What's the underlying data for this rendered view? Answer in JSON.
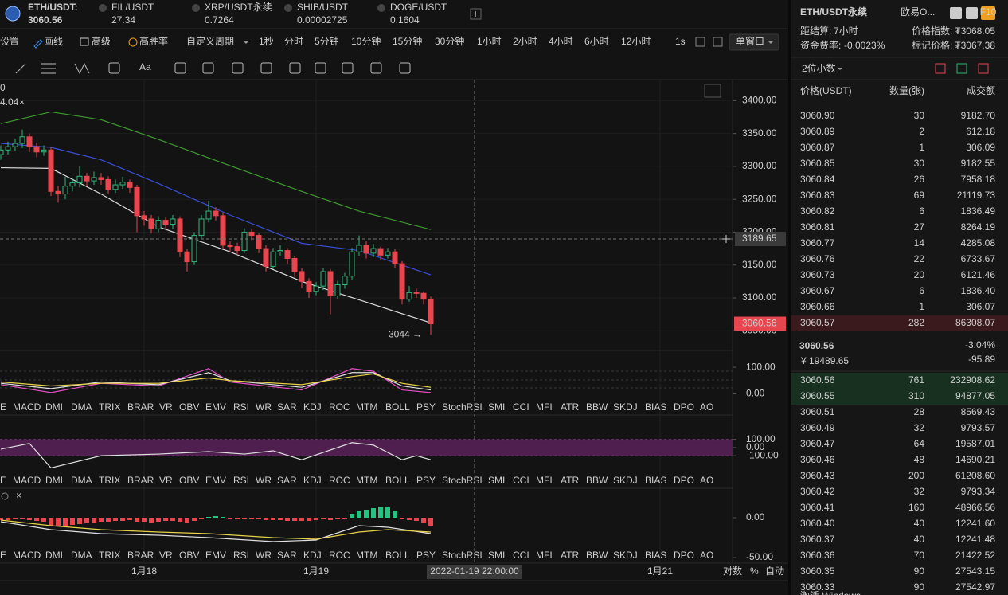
{
  "tickers": [
    {
      "symbol": "ETH/USDT:",
      "price": "3060.56",
      "color": "#e8e8e8"
    },
    {
      "symbol": "FIL/USDT",
      "price": "27.34",
      "color": "#e0484d"
    },
    {
      "symbol": "XRP/USDT永续",
      "price": "0.7264",
      "color": "#2db56e"
    },
    {
      "symbol": "SHIB/USDT",
      "price": "0.00002725",
      "color": "#e0484d"
    },
    {
      "symbol": "DOGE/USDT",
      "price": "0.1604",
      "color": "#e0484d"
    }
  ],
  "toolbar": {
    "items": [
      "设置",
      "画线",
      "高级",
      "高胜率",
      "自定义周期"
    ],
    "periods": [
      "1秒",
      "分时",
      "5分钟",
      "10分钟",
      "15分钟",
      "30分钟",
      "1小时",
      "2小时",
      "4小时",
      "6小时",
      "12小时"
    ],
    "active_period": "1小时",
    "interval": "1s",
    "window": "单窗口",
    "font_tool": "Aa"
  },
  "legend_fragments": [
    "0",
    "4.04"
  ],
  "axis_options": [
    "对数",
    "%",
    "自动"
  ],
  "indicator_tabs": [
    "E",
    "MACD",
    "DMI",
    "DMA",
    "TRIX",
    "BRAR",
    "VR",
    "OBV",
    "EMV",
    "RSI",
    "WR",
    "SAR",
    "KDJ",
    "ROC",
    "MTM",
    "BOLL",
    "PSY",
    "StochRSI",
    "SMI",
    "CCI",
    "MFI",
    "ATR",
    "BBW",
    "SKDJ",
    "BIAS",
    "DPO",
    "AO"
  ],
  "chart_data": [
    {
      "type": "candlestick",
      "categories": [
        null,
        null,
        null,
        null,
        null,
        null,
        null,
        null,
        null,
        null,
        null,
        null,
        null,
        null,
        null,
        null,
        null,
        null,
        null,
        null,
        "1月18",
        null,
        null,
        null,
        null,
        null,
        null,
        null,
        null,
        null,
        null,
        null,
        null,
        null,
        null,
        null,
        null,
        null,
        null,
        null,
        null,
        null,
        null,
        null,
        "1月19",
        null,
        null,
        null,
        null,
        null,
        null,
        null,
        null,
        null,
        null,
        null,
        null,
        null,
        null,
        null,
        null
      ],
      "next_date_label": "1月21",
      "open": [
        3318,
        3325,
        3330,
        3335,
        3345,
        3330,
        3322,
        3325,
        3262,
        3258,
        3270,
        3275,
        3285,
        3278,
        3283,
        3280,
        3265,
        3272,
        3276,
        3268,
        3225,
        3220,
        3205,
        3218,
        3212,
        3220,
        3170,
        3155,
        3195,
        3220,
        3232,
        3225,
        3180,
        3178,
        3172,
        3200,
        3195,
        3175,
        3148,
        3170,
        3172,
        3160,
        3140,
        3125,
        3110,
        3118,
        3140,
        3103,
        3120,
        3133,
        3170,
        3180,
        3168,
        3175,
        3165,
        3170,
        3152,
        3098,
        3108,
        3107,
        3098
      ],
      "high": [
        3332,
        3338,
        3342,
        3356,
        3350,
        3336,
        3332,
        3330,
        3270,
        3284,
        3282,
        3300,
        3290,
        3292,
        3290,
        3285,
        3280,
        3284,
        3280,
        3272,
        3232,
        3226,
        3224,
        3222,
        3226,
        3224,
        3175,
        3200,
        3226,
        3248,
        3238,
        3230,
        3186,
        3184,
        3206,
        3204,
        3198,
        3180,
        3176,
        3180,
        3176,
        3164,
        3145,
        3130,
        3124,
        3146,
        3144,
        3126,
        3138,
        3176,
        3195,
        3186,
        3182,
        3178,
        3176,
        3174,
        3156,
        3118,
        3114,
        3110,
        3102
      ],
      "low": [
        3310,
        3318,
        3324,
        3328,
        3322,
        3314,
        3316,
        3255,
        3245,
        3250,
        3262,
        3268,
        3270,
        3272,
        3272,
        3258,
        3260,
        3266,
        3260,
        3200,
        3210,
        3198,
        3200,
        3204,
        3205,
        3162,
        3140,
        3150,
        3190,
        3215,
        3218,
        3175,
        3170,
        3165,
        3168,
        3188,
        3168,
        3140,
        3144,
        3164,
        3152,
        3132,
        3115,
        3100,
        3104,
        3112,
        3075,
        3098,
        3114,
        3128,
        3164,
        3160,
        3162,
        3158,
        3160,
        3146,
        3090,
        3094,
        3100,
        3090,
        3044
      ],
      "close": [
        3325,
        3330,
        3335,
        3345,
        3330,
        3322,
        3325,
        3262,
        3258,
        3270,
        3275,
        3285,
        3278,
        3283,
        3280,
        3265,
        3272,
        3276,
        3268,
        3225,
        3220,
        3205,
        3218,
        3212,
        3220,
        3170,
        3155,
        3195,
        3220,
        3232,
        3225,
        3180,
        3178,
        3172,
        3200,
        3195,
        3175,
        3148,
        3170,
        3172,
        3160,
        3140,
        3125,
        3110,
        3118,
        3140,
        3103,
        3120,
        3133,
        3170,
        3180,
        3168,
        3175,
        3165,
        3170,
        3152,
        3098,
        3108,
        3107,
        3098,
        3060.56
      ],
      "up_color": "#2fb87a",
      "down_color": "#e8464f",
      "overlay_x": [
        0,
        7,
        14,
        22,
        32,
        42,
        50,
        60
      ],
      "overlays": [
        {
          "color": "#3e9b2f",
          "values": [
            3365,
            3383,
            3371,
            3341,
            3301,
            3262,
            3232,
            3204
          ]
        },
        {
          "color": "#3a4fd6",
          "values": [
            3335,
            3329,
            3310,
            3274,
            3226,
            3183,
            3172,
            3135
          ]
        },
        {
          "color": "#dddddd",
          "values": [
            3298,
            3297,
            3258,
            3208,
            3170,
            3125,
            3097,
            3062
          ]
        }
      ],
      "ylim": [
        3020,
        3432
      ],
      "yticks": [
        {
          "value": 3400,
          "label": "3400.00"
        },
        {
          "value": 3350,
          "label": "3350.00"
        },
        {
          "value": 3300,
          "label": "3300.00"
        },
        {
          "value": 3250,
          "label": "3250.00"
        },
        {
          "value": 3200,
          "label": "3200.00"
        },
        {
          "value": 3150,
          "label": "3150.00"
        },
        {
          "value": 3100,
          "label": "3100.00"
        },
        {
          "value": 3050,
          "label": "3050.00"
        }
      ],
      "crosshair": {
        "value": 3189.65,
        "label": "3189.65",
        "time": "2022-01-19 22:00:00"
      },
      "last_price": {
        "value": 3060.56,
        "label": "3060.56"
      },
      "low_label": {
        "value": 3044,
        "label": "3044 →"
      }
    },
    {
      "type": "line",
      "active": "KDJ",
      "dim_tabs": [
        "CCI"
      ],
      "x": [
        0,
        7,
        14,
        22,
        29,
        32,
        42,
        49,
        52,
        56,
        60
      ],
      "series": [
        {
          "color": "#e04fc4",
          "values": [
            35,
            5,
            40,
            30,
            95,
            45,
            15,
            95,
            85,
            15,
            5
          ]
        },
        {
          "color": "#e0e0e0",
          "values": [
            40,
            20,
            45,
            35,
            80,
            50,
            25,
            80,
            80,
            30,
            15
          ]
        },
        {
          "color": "#e8d24a",
          "values": [
            45,
            30,
            40,
            40,
            60,
            50,
            35,
            65,
            75,
            40,
            25
          ]
        }
      ],
      "ylim": [
        -79,
        163
      ],
      "yticks": [
        {
          "value": 100,
          "label": "100.00"
        },
        {
          "value": 0,
          "label": "0.00"
        }
      ]
    },
    {
      "type": "line",
      "active": "CCI",
      "dim_tabs": [
        "MACD",
        "KDJ"
      ],
      "band": [
        -100,
        100
      ],
      "band_color": "#4f1f4f",
      "x": [
        0,
        4,
        7,
        14,
        22,
        29,
        34,
        38,
        42,
        49,
        52,
        56,
        58,
        60
      ],
      "series": [
        {
          "color": "#e0e0e0",
          "values": [
            -20,
            50,
            -250,
            -100,
            -80,
            -50,
            -80,
            -40,
            -150,
            60,
            30,
            -150,
            -100,
            -150
          ]
        }
      ],
      "ylim": [
        -500,
        400
      ],
      "yticks": [
        {
          "value": 100,
          "label": "100.00"
        },
        {
          "value": 0,
          "label": "0.00"
        },
        {
          "value": -100,
          "label": "-100.00"
        }
      ]
    },
    {
      "type": "macd",
      "active": "MACD",
      "dim_tabs": [
        "KDJ"
      ],
      "histogram": [
        -3,
        -3,
        -2,
        -2,
        -3,
        -4,
        -5,
        -10,
        -11,
        -10,
        -9,
        -8,
        -7,
        -6,
        -5,
        -5,
        -4,
        -4,
        -3,
        -5,
        -5,
        -6,
        -5,
        -4,
        -4,
        -5,
        -6,
        -4,
        -2,
        1,
        2,
        1,
        -1,
        -2,
        -1,
        -1,
        -2,
        -3,
        -3,
        -3,
        -4,
        -4,
        -4,
        -4,
        -3,
        -2,
        -3,
        -2,
        -1,
        5,
        8,
        10,
        12,
        14,
        13,
        9,
        -2,
        -3,
        -4,
        -6,
        -10
      ],
      "up_color": "#26c281",
      "down_color": "#e8464f",
      "x": [
        0,
        7,
        14,
        22,
        29,
        38,
        44,
        50,
        54,
        60
      ],
      "series": [
        {
          "color": "#e0e0e0",
          "values": [
            -5,
            -15,
            -20,
            -22,
            -25,
            -30,
            -28,
            -10,
            -12,
            -20
          ]
        },
        {
          "color": "#e8d24a",
          "values": [
            -3,
            -10,
            -15,
            -18,
            -20,
            -25,
            -27,
            -18,
            -15,
            -18
          ]
        }
      ],
      "ylim": [
        -57,
        37
      ],
      "yticks": [
        {
          "value": 0,
          "label": "0.00"
        },
        {
          "value": -50,
          "label": "-50.00"
        }
      ]
    }
  ],
  "orderbook": {
    "title": "ETH/USDT永续",
    "exchange": "欧易O...",
    "badge": "F10",
    "settle_label": "距结算:",
    "settle_value": "7小时",
    "index_label": "价格指数:",
    "index_value": "₮3068.05",
    "funding_label": "资金费率:",
    "funding_value": "-0.0023%",
    "mark_label": "标记价格:",
    "mark_value": "₮3067.38",
    "precision": "2位小数",
    "columns": [
      "价格(USDT)",
      "数量(张)",
      "成交额"
    ],
    "asks": [
      [
        "3060.90",
        "30",
        "9182.70"
      ],
      [
        "3060.89",
        "2",
        "612.18"
      ],
      [
        "3060.87",
        "1",
        "306.09"
      ],
      [
        "3060.85",
        "30",
        "9182.55"
      ],
      [
        "3060.84",
        "26",
        "7958.18"
      ],
      [
        "3060.83",
        "69",
        "21119.73"
      ],
      [
        "3060.82",
        "6",
        "1836.49"
      ],
      [
        "3060.81",
        "27",
        "8264.19"
      ],
      [
        "3060.77",
        "14",
        "4285.08"
      ],
      [
        "3060.76",
        "22",
        "6733.67"
      ],
      [
        "3060.73",
        "20",
        "6121.46"
      ],
      [
        "3060.67",
        "6",
        "1836.40"
      ],
      [
        "3060.66",
        "1",
        "306.07"
      ],
      [
        "3060.57",
        "282",
        "86308.07"
      ]
    ],
    "last": "3060.56",
    "change_pct": "-3.04%",
    "cny": "¥ 19489.65",
    "change": "-95.89",
    "bids": [
      [
        "3060.56",
        "761",
        "232908.62"
      ],
      [
        "3060.55",
        "310",
        "94877.05"
      ],
      [
        "3060.51",
        "28",
        "8569.43"
      ],
      [
        "3060.49",
        "32",
        "9793.57"
      ],
      [
        "3060.47",
        "64",
        "19587.01"
      ],
      [
        "3060.46",
        "48",
        "14690.21"
      ],
      [
        "3060.43",
        "200",
        "61208.60"
      ],
      [
        "3060.42",
        "32",
        "9793.34"
      ],
      [
        "3060.41",
        "160",
        "48966.56"
      ],
      [
        "3060.40",
        "40",
        "12241.60"
      ],
      [
        "3060.37",
        "40",
        "12241.48"
      ],
      [
        "3060.36",
        "70",
        "21422.52"
      ],
      [
        "3060.35",
        "90",
        "27543.15"
      ],
      [
        "3060.33",
        "90",
        "27542.97"
      ]
    ],
    "watermark": "激活 Windows"
  }
}
